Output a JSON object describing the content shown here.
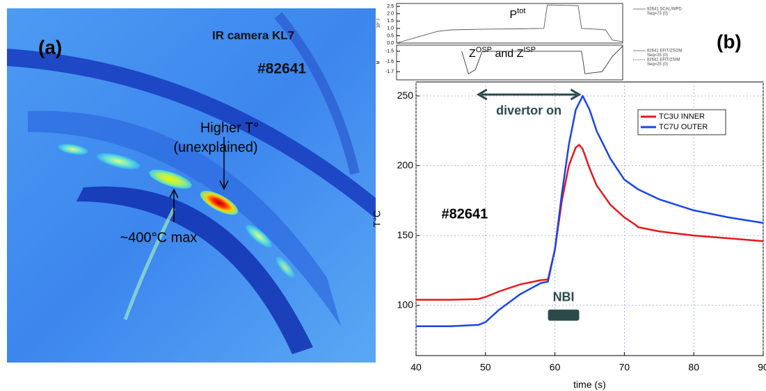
{
  "image_panel": {
    "label": "(a)",
    "camera": "IR camera KL7",
    "shot": "#82641",
    "note_line1": "Higher T°",
    "note_line2": "(unexplained)",
    "max_note": "~400°C max"
  },
  "panel_b_label": "(b)",
  "chart_data": [
    {
      "type": "line",
      "xlabel": "time (s)",
      "ylabel": "T°C",
      "xlim": [
        40,
        90
      ],
      "xticks": [
        40,
        50,
        60,
        70,
        80,
        90
      ],
      "ylim": [
        64,
        260
      ],
      "yticks": [
        100,
        150,
        200,
        250
      ],
      "grid": true,
      "legend": "upper right",
      "series": [
        {
          "name": "TC3U INNER",
          "color": "#e8161b",
          "x": [
            40,
            45,
            49,
            50,
            52,
            55,
            58,
            59,
            60,
            61,
            62,
            63,
            63.5,
            64,
            65,
            66,
            68,
            70,
            71.5,
            72,
            75,
            80,
            85,
            90
          ],
          "values": [
            104,
            104,
            104.5,
            106,
            110,
            115,
            118,
            118.5,
            140,
            175,
            200,
            213,
            215,
            212,
            198,
            186,
            172,
            163,
            158,
            156,
            153,
            150,
            148,
            146
          ]
        },
        {
          "name": "TC7U OUTER",
          "color": "#1845e8",
          "x": [
            40,
            45,
            49,
            50,
            52,
            55,
            58,
            59,
            60,
            61,
            62,
            63,
            64,
            65,
            66,
            68,
            70,
            72,
            75,
            80,
            85,
            90
          ],
          "values": [
            85,
            85,
            86,
            88,
            97,
            108,
            116,
            117,
            140,
            180,
            215,
            240,
            250,
            240,
            225,
            205,
            190,
            183,
            176,
            168,
            163,
            159
          ]
        }
      ],
      "annotations": [
        {
          "text": "divertor on",
          "x": [
            49,
            63.5
          ],
          "y": 251
        },
        {
          "text": "NBI",
          "x": [
            59,
            63.5
          ],
          "y": 93
        },
        {
          "text": "#82641",
          "x": [
            47
          ],
          "y": 165
        }
      ]
    },
    {
      "type": "line",
      "title": "P",
      "title_sup": "tot",
      "ylabel": "10⁶ J",
      "xlim": [
        37,
        70
      ],
      "ylim": [
        0,
        2.7
      ],
      "yticks": [
        {
          "value": 0,
          "label": "0.0"
        },
        0.5,
        {
          "value": 1,
          "label": "1.0"
        },
        1.5,
        {
          "value": 2,
          "label": "2.0"
        },
        2.5
      ],
      "legend_lines": [
        "82641 SCAL/WPD",
        "Seq=73 (0)"
      ],
      "series": [
        {
          "color": "#555555",
          "x": [
            37,
            40,
            43,
            45,
            50,
            55,
            58.5,
            59,
            63.5,
            64,
            66,
            67.5,
            68.5,
            70
          ],
          "values": [
            0,
            0.4,
            0.8,
            0.9,
            0.95,
            0.97,
            1.0,
            2.6,
            2.55,
            1.0,
            0.95,
            0.9,
            0.2,
            0.1
          ]
        }
      ]
    },
    {
      "type": "line",
      "title": "Z",
      "title_sup": "OSP",
      "title_mid": " and Z",
      "title_sup2": "ISP",
      "ylabel": "M",
      "xlim": [
        37,
        70
      ],
      "ylim": [
        -1.78,
        -1.44
      ],
      "yticks": [
        -1.5,
        -1.6,
        -1.7
      ],
      "legend_lines": [
        "82641 EFIT/ZSOM",
        "Seq=25 (0)",
        "82641 EFIT/ZSIM",
        "Seq=25 (0)"
      ],
      "series": [
        {
          "color": "#333333",
          "x": [
            46.5,
            47.5,
            48.5,
            49.5,
            64,
            64.5,
            67,
            68.5,
            70
          ],
          "values": [
            -1.5,
            -1.72,
            -1.68,
            -1.5,
            -1.5,
            -1.72,
            -1.7,
            -1.55,
            -1.45
          ]
        }
      ]
    }
  ]
}
